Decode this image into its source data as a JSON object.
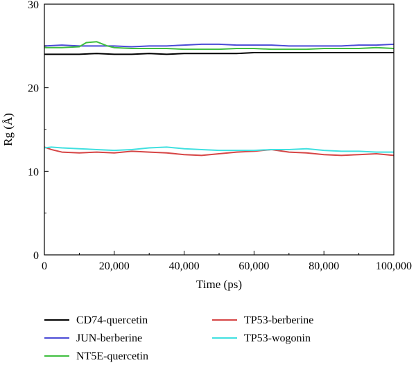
{
  "chart_data": {
    "type": "line",
    "xlabel": "Time (ps)",
    "ylabel": "Rg (Å)",
    "xlim": [
      0,
      100000
    ],
    "ylim": [
      0,
      30
    ],
    "xticks": [
      0,
      20000,
      40000,
      60000,
      80000,
      100000
    ],
    "xtick_labels": [
      "0",
      "20,000",
      "40,000",
      "60,000",
      "80,000",
      "100,000"
    ],
    "yticks": [
      0,
      10,
      20,
      30
    ],
    "ytick_labels": [
      "0",
      "10",
      "20",
      "30"
    ],
    "grid": false,
    "legend_position": "below",
    "series": [
      {
        "name": "CD74-quercetin",
        "color": "#000000",
        "x": [
          0,
          5000,
          10000,
          15000,
          20000,
          25000,
          30000,
          35000,
          40000,
          45000,
          50000,
          55000,
          60000,
          65000,
          70000,
          75000,
          80000,
          85000,
          90000,
          95000,
          100000
        ],
        "y": [
          24.0,
          24.0,
          24.0,
          24.1,
          24.0,
          24.0,
          24.1,
          24.0,
          24.1,
          24.1,
          24.1,
          24.1,
          24.2,
          24.2,
          24.2,
          24.2,
          24.2,
          24.2,
          24.2,
          24.2,
          24.2
        ]
      },
      {
        "name": "JUN-berberine",
        "color": "#4b4bd6",
        "x": [
          0,
          5000,
          10000,
          15000,
          20000,
          25000,
          30000,
          35000,
          40000,
          45000,
          50000,
          55000,
          60000,
          65000,
          70000,
          75000,
          80000,
          85000,
          90000,
          95000,
          100000
        ],
        "y": [
          25.0,
          25.1,
          25.0,
          25.0,
          25.0,
          24.9,
          25.0,
          25.0,
          25.1,
          25.2,
          25.2,
          25.1,
          25.1,
          25.1,
          25.0,
          25.0,
          25.0,
          25.0,
          25.1,
          25.1,
          25.2
        ]
      },
      {
        "name": "NT5E-quercetin",
        "color": "#3fbe3f",
        "x": [
          0,
          5000,
          10000,
          12000,
          15000,
          18000,
          20000,
          25000,
          30000,
          35000,
          40000,
          45000,
          50000,
          55000,
          60000,
          65000,
          70000,
          75000,
          80000,
          85000,
          90000,
          95000,
          100000
        ],
        "y": [
          24.8,
          24.8,
          24.9,
          25.4,
          25.5,
          25.0,
          24.8,
          24.7,
          24.7,
          24.7,
          24.6,
          24.6,
          24.6,
          24.7,
          24.7,
          24.6,
          24.6,
          24.6,
          24.7,
          24.7,
          24.7,
          24.8,
          24.7
        ]
      },
      {
        "name": "TP53-berberine",
        "color": "#d64545",
        "x": [
          0,
          2000,
          5000,
          10000,
          15000,
          20000,
          25000,
          30000,
          35000,
          40000,
          45000,
          50000,
          55000,
          60000,
          65000,
          70000,
          75000,
          80000,
          85000,
          90000,
          95000,
          100000
        ],
        "y": [
          12.9,
          12.6,
          12.3,
          12.2,
          12.3,
          12.2,
          12.4,
          12.3,
          12.2,
          12.0,
          11.9,
          12.1,
          12.3,
          12.4,
          12.6,
          12.3,
          12.2,
          12.0,
          11.9,
          12.0,
          12.1,
          11.9
        ]
      },
      {
        "name": "TP53-wogonin",
        "color": "#40e0e0",
        "x": [
          0,
          2000,
          5000,
          10000,
          15000,
          20000,
          25000,
          30000,
          35000,
          40000,
          45000,
          50000,
          55000,
          60000,
          65000,
          70000,
          75000,
          80000,
          85000,
          90000,
          95000,
          100000
        ],
        "y": [
          12.8,
          12.9,
          12.8,
          12.7,
          12.6,
          12.5,
          12.6,
          12.8,
          12.9,
          12.7,
          12.6,
          12.5,
          12.5,
          12.5,
          12.6,
          12.6,
          12.7,
          12.5,
          12.4,
          12.4,
          12.3,
          12.3
        ]
      }
    ]
  }
}
